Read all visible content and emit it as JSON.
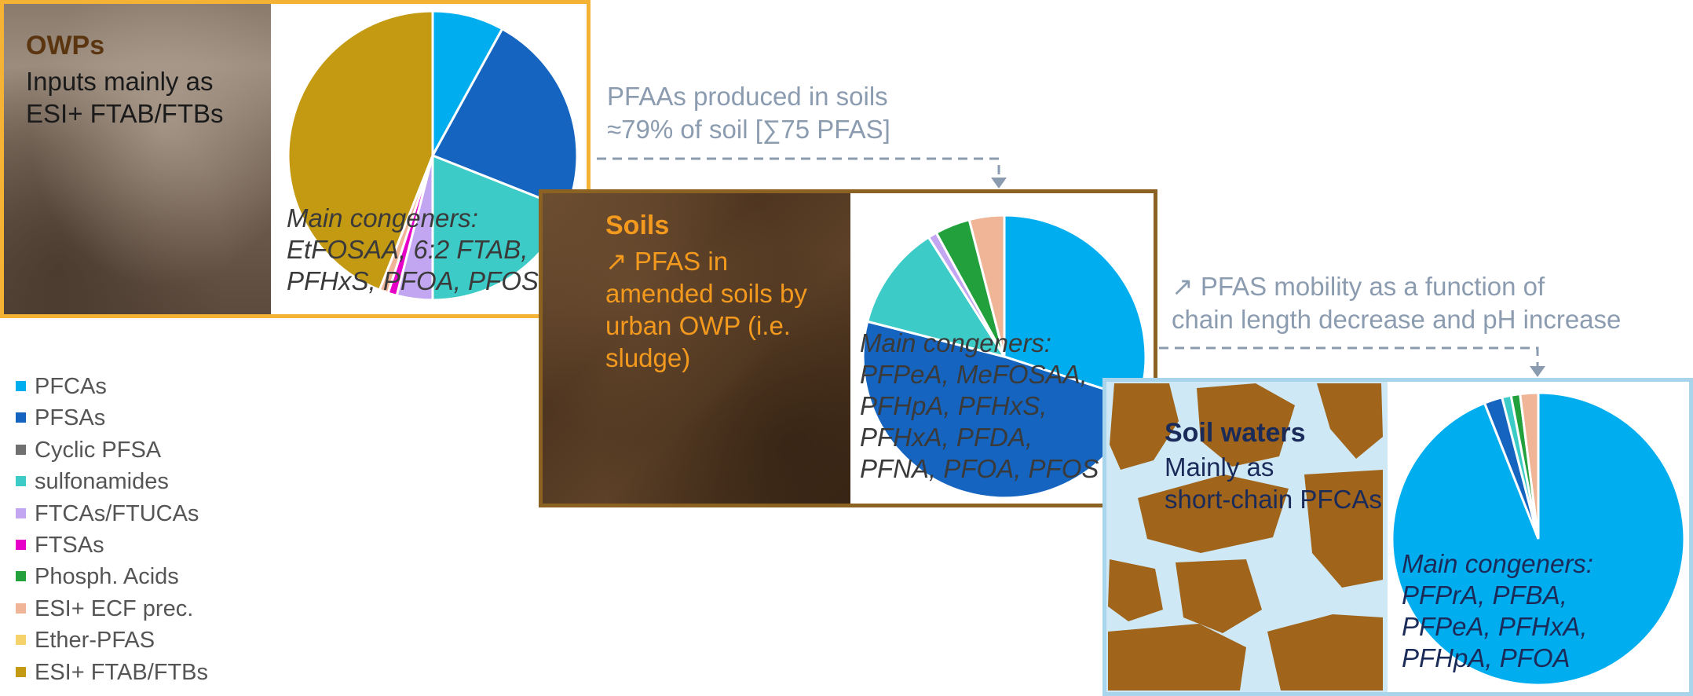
{
  "categories": [
    {
      "label": "PFCAs",
      "color": "#00aeef"
    },
    {
      "label": "PFSAs",
      "color": "#1565c0"
    },
    {
      "label": "Cyclic PFSA",
      "color": "#707070"
    },
    {
      "label": "sulfonamides",
      "color": "#3ccbc6"
    },
    {
      "label": "FTCAs/FTUCAs",
      "color": "#c3a6f2"
    },
    {
      "label": "FTSAs",
      "color": "#e600c8"
    },
    {
      "label": "Phosph. Acids",
      "color": "#22a03c"
    },
    {
      "label": "ESI+ ECF prec.",
      "color": "#f0b596"
    },
    {
      "label": "Ether-PFAS",
      "color": "#f6d36a"
    },
    {
      "label": "ESI+ FTAB/FTBs",
      "color": "#c49a12"
    }
  ],
  "panels": {
    "owp": {
      "title": "OWPs",
      "lines": [
        "Inputs mainly as",
        "ESI+ FTAB/FTBs"
      ],
      "congeners_title": "Main congeners:",
      "congeners": [
        "EtFOSAA, 6:2 FTAB,",
        "PFHxS, PFOA, PFOS"
      ],
      "border_color": "#f5b335"
    },
    "soils": {
      "title": "Soils",
      "lines": [
        "↗ PFAS in",
        "amended soils by",
        "urban OWP (i.e.",
        "sludge)"
      ],
      "congeners_title": "Main congeners:",
      "congeners": [
        "PFPeA, MeFOSAA,",
        "PFHpA, PFHxS,",
        "PFHxA, PFDA,",
        "PFNA, PFOA, PFOS"
      ],
      "border_color": "#8b6221"
    },
    "waters": {
      "title": "Soil waters",
      "lines": [
        "Mainly as",
        "short-chain PFCAs"
      ],
      "congeners_title": "Main congeners:",
      "congeners": [
        "PFPrA, PFBA,",
        "PFPeA, PFHxA,",
        "PFHpA, PFOA"
      ],
      "border_color": "#a8d4ec"
    }
  },
  "flows": {
    "a": [
      "PFAAs produced in soils",
      "≈79% of soil [∑75 PFAS]"
    ],
    "b": [
      "↗ PFAS mobility as a function of",
      "chain length decrease and pH increase"
    ]
  },
  "chart_data": [
    {
      "type": "pie",
      "name_ref": "OWPs",
      "categories": [
        "PFCAs",
        "PFSAs",
        "sulfonamides",
        "FTCAs/FTUCAs",
        "FTSAs",
        "ESI+ ECF prec.",
        "ESI+ FTAB/FTBs"
      ],
      "values": [
        8,
        23,
        19,
        4,
        1,
        1,
        44
      ],
      "colors": [
        "#00aeef",
        "#1565c0",
        "#3ccbc6",
        "#c3a6f2",
        "#e600c8",
        "#f0b596",
        "#c49a12"
      ]
    },
    {
      "type": "pie",
      "name_ref": "Soils",
      "categories": [
        "PFCAs",
        "PFSAs",
        "sulfonamides",
        "FTCAs/FTUCAs",
        "Phosph. Acids",
        "ESI+ ECF prec."
      ],
      "values": [
        30,
        49,
        12,
        1,
        4,
        4
      ],
      "colors": [
        "#00aeef",
        "#1565c0",
        "#3ccbc6",
        "#c3a6f2",
        "#22a03c",
        "#f0b596"
      ]
    },
    {
      "type": "pie",
      "name_ref": "Soil waters",
      "categories": [
        "PFCAs",
        "PFSAs",
        "sulfonamides",
        "Phosph. Acids",
        "ESI+ ECF prec."
      ],
      "values": [
        94,
        2,
        1,
        1,
        2
      ],
      "colors": [
        "#00aeef",
        "#1565c0",
        "#3ccbc6",
        "#22a03c",
        "#f0b596"
      ]
    }
  ]
}
